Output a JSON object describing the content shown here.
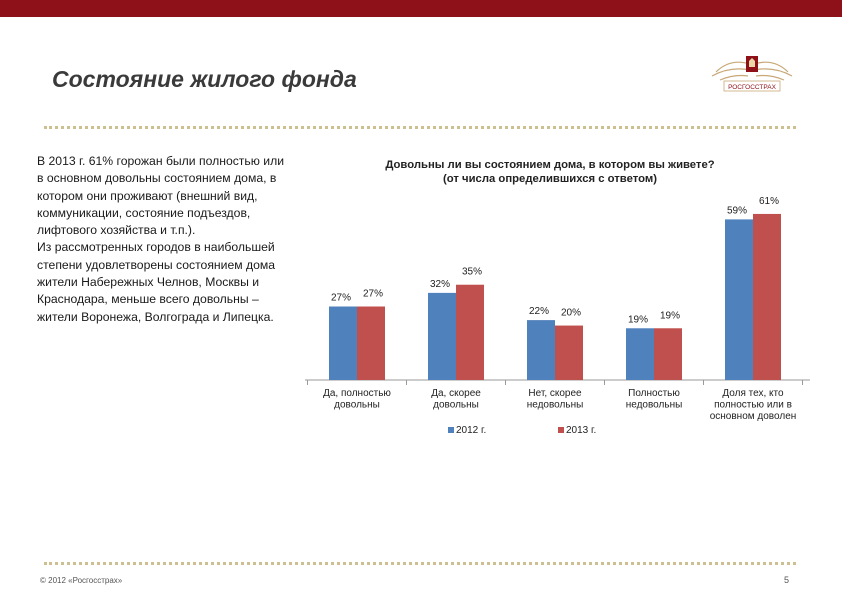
{
  "slide": {
    "title": "Состояние жилого фонда",
    "logo_text": "РОСГОССТРАХ",
    "body_paragraphs": [
      "В 2013 г. 61% горожан были полностью или в основном довольны состоянием дома, в котором они проживают (внешний вид, коммуникации, состояние подъездов, лифтового хозяйства и т.п.).",
      "Из рассмотренных городов в наибольшей степени удовлетворены состоянием дома жители Набережных Челнов, Москвы и Краснодара, меньше всего довольны – жители Воронежа, Волгограда и Липецка."
    ],
    "footer_copyright": "© 2012 «Росгосстрах»",
    "page_number": "5"
  },
  "colors": {
    "topbar": "#8e1019",
    "series_2012": "#4f81bd",
    "series_2013": "#c0504d",
    "dots": "#cdbf8f",
    "logo": "#c8a878"
  },
  "chart_data": {
    "type": "bar",
    "title_lines": [
      "Довольны ли вы состоянием дома, в котором вы живете?",
      "(от числа определившихся с ответом)"
    ],
    "categories": [
      [
        "Да, полностью",
        "довольны"
      ],
      [
        "Да, скорее",
        "довольны"
      ],
      [
        "Нет, скорее",
        "недовольны"
      ],
      [
        "Полностью",
        "недовольны"
      ],
      [
        "Доля тех, кто",
        "полностью или в",
        "основном доволен"
      ]
    ],
    "series": [
      {
        "name": "2012 г.",
        "values": [
          27,
          32,
          22,
          19,
          59
        ]
      },
      {
        "name": "2013 г.",
        "values": [
          27,
          35,
          20,
          19,
          61
        ]
      }
    ],
    "value_suffix": "%",
    "legend_position": "bottom",
    "grid": false,
    "ylim": [
      0,
      70
    ]
  }
}
